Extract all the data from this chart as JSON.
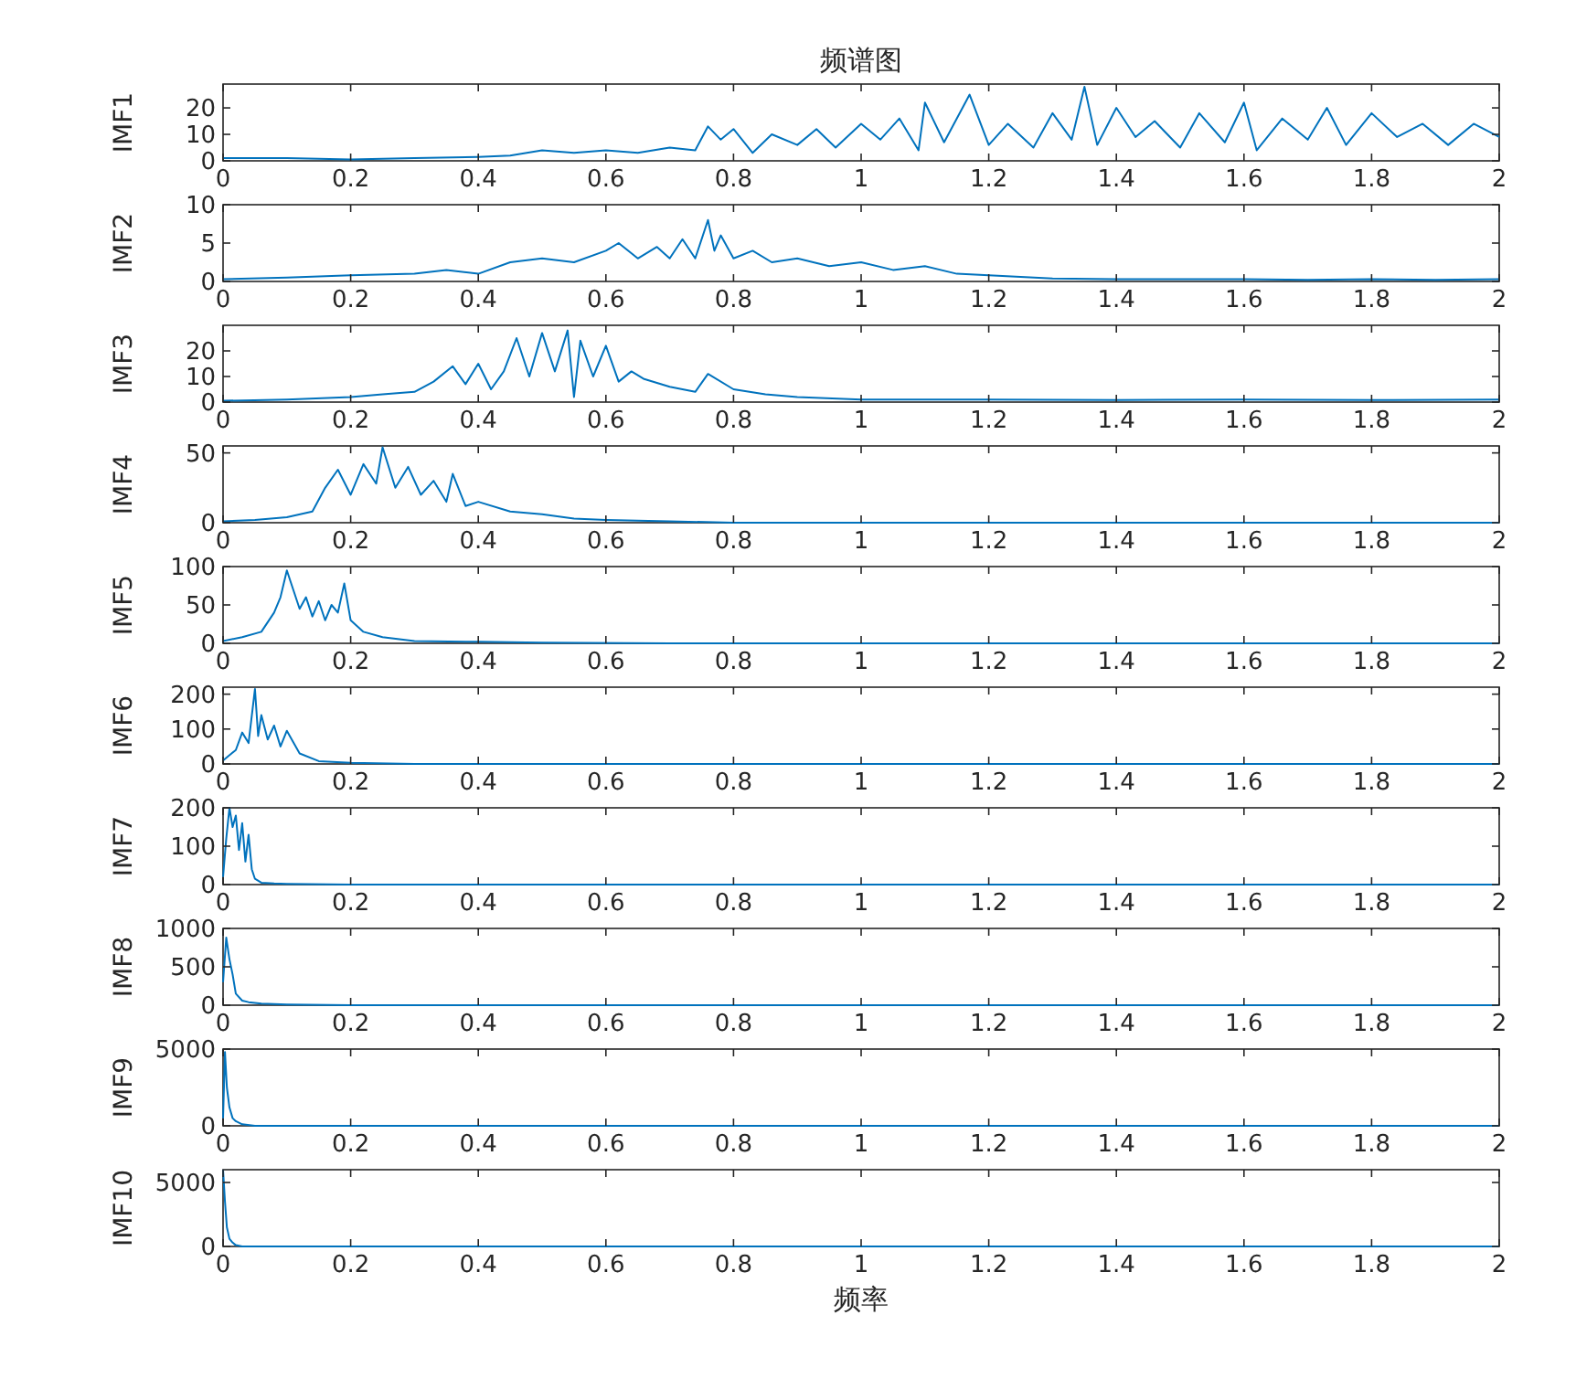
{
  "chart_data": [
    {
      "type": "line",
      "title": "频谱图",
      "ylabel": "IMF1",
      "color": "#0072bd",
      "xlim": [
        0,
        2
      ],
      "xticks": [
        0,
        0.2,
        0.4,
        0.6,
        0.8,
        1,
        1.2,
        1.4,
        1.6,
        1.8,
        2
      ],
      "ylim": [
        0,
        29
      ],
      "yticks": [
        0,
        10,
        20
      ],
      "x": [
        0,
        0.1,
        0.2,
        0.3,
        0.4,
        0.45,
        0.5,
        0.55,
        0.6,
        0.65,
        0.7,
        0.74,
        0.76,
        0.78,
        0.8,
        0.83,
        0.86,
        0.9,
        0.93,
        0.96,
        1.0,
        1.03,
        1.06,
        1.09,
        1.1,
        1.13,
        1.17,
        1.2,
        1.23,
        1.27,
        1.3,
        1.33,
        1.35,
        1.37,
        1.4,
        1.43,
        1.46,
        1.5,
        1.53,
        1.57,
        1.6,
        1.62,
        1.66,
        1.7,
        1.73,
        1.76,
        1.8,
        1.84,
        1.88,
        1.92,
        1.96,
        2.0
      ],
      "values": [
        1,
        1,
        0.5,
        1,
        1.5,
        2,
        4,
        3,
        4,
        3,
        5,
        4,
        13,
        8,
        12,
        3,
        10,
        6,
        12,
        5,
        14,
        8,
        16,
        4,
        22,
        7,
        25,
        6,
        14,
        5,
        18,
        8,
        28,
        6,
        20,
        9,
        15,
        5,
        18,
        7,
        22,
        4,
        16,
        8,
        20,
        6,
        18,
        9,
        14,
        6,
        14,
        9
      ]
    },
    {
      "type": "line",
      "ylabel": "IMF2",
      "color": "#0072bd",
      "xlim": [
        0,
        2
      ],
      "xticks": [
        0,
        0.2,
        0.4,
        0.6,
        0.8,
        1,
        1.2,
        1.4,
        1.6,
        1.8,
        2
      ],
      "ylim": [
        0,
        10
      ],
      "yticks": [
        0,
        5,
        10
      ],
      "x": [
        0,
        0.1,
        0.2,
        0.3,
        0.35,
        0.4,
        0.45,
        0.5,
        0.55,
        0.6,
        0.62,
        0.65,
        0.68,
        0.7,
        0.72,
        0.74,
        0.76,
        0.77,
        0.78,
        0.8,
        0.83,
        0.86,
        0.9,
        0.95,
        1.0,
        1.05,
        1.1,
        1.15,
        1.2,
        1.3,
        1.4,
        1.5,
        1.6,
        1.7,
        1.8,
        1.9,
        2.0
      ],
      "values": [
        0.3,
        0.5,
        0.8,
        1,
        1.5,
        1,
        2.5,
        3,
        2.5,
        4,
        5,
        3,
        4.5,
        3,
        5.5,
        3,
        8,
        4,
        6,
        3,
        4,
        2.5,
        3,
        2,
        2.5,
        1.5,
        2,
        1,
        0.8,
        0.4,
        0.3,
        0.3,
        0.3,
        0.2,
        0.3,
        0.2,
        0.3
      ]
    },
    {
      "type": "line",
      "ylabel": "IMF3",
      "color": "#0072bd",
      "xlim": [
        0,
        2
      ],
      "xticks": [
        0,
        0.2,
        0.4,
        0.6,
        0.8,
        1,
        1.2,
        1.4,
        1.6,
        1.8,
        2
      ],
      "ylim": [
        0,
        30
      ],
      "yticks": [
        0,
        10,
        20
      ],
      "x": [
        0,
        0.1,
        0.2,
        0.25,
        0.3,
        0.33,
        0.36,
        0.38,
        0.4,
        0.42,
        0.44,
        0.46,
        0.48,
        0.5,
        0.52,
        0.54,
        0.55,
        0.56,
        0.58,
        0.6,
        0.62,
        0.64,
        0.66,
        0.7,
        0.74,
        0.76,
        0.8,
        0.85,
        0.9,
        1.0,
        1.2,
        1.4,
        1.6,
        1.8,
        2.0
      ],
      "values": [
        0.5,
        1,
        2,
        3,
        4,
        8,
        14,
        7,
        15,
        5,
        12,
        25,
        10,
        27,
        12,
        28,
        2,
        24,
        10,
        22,
        8,
        12,
        9,
        6,
        4,
        11,
        5,
        3,
        2,
        1,
        1,
        0.8,
        1,
        0.8,
        1
      ]
    },
    {
      "type": "line",
      "ylabel": "IMF4",
      "color": "#0072bd",
      "xlim": [
        0,
        2
      ],
      "xticks": [
        0,
        0.2,
        0.4,
        0.6,
        0.8,
        1,
        1.2,
        1.4,
        1.6,
        1.8,
        2
      ],
      "ylim": [
        0,
        55
      ],
      "yticks": [
        0,
        50
      ],
      "x": [
        0,
        0.05,
        0.1,
        0.14,
        0.16,
        0.18,
        0.2,
        0.22,
        0.24,
        0.25,
        0.27,
        0.29,
        0.31,
        0.33,
        0.35,
        0.36,
        0.38,
        0.4,
        0.45,
        0.5,
        0.55,
        0.6,
        0.7,
        0.8,
        1.0,
        1.5,
        2.0
      ],
      "values": [
        1,
        2,
        4,
        8,
        25,
        38,
        20,
        42,
        28,
        54,
        25,
        40,
        20,
        30,
        15,
        35,
        12,
        15,
        8,
        6,
        3,
        2,
        1,
        0,
        0,
        0,
        0
      ]
    },
    {
      "type": "line",
      "ylabel": "IMF5",
      "color": "#0072bd",
      "xlim": [
        0,
        2
      ],
      "xticks": [
        0,
        0.2,
        0.4,
        0.6,
        0.8,
        1,
        1.2,
        1.4,
        1.6,
        1.8,
        2
      ],
      "ylim": [
        0,
        100
      ],
      "yticks": [
        0,
        50,
        100
      ],
      "x": [
        0,
        0.03,
        0.06,
        0.08,
        0.09,
        0.1,
        0.11,
        0.12,
        0.13,
        0.14,
        0.15,
        0.16,
        0.17,
        0.18,
        0.19,
        0.2,
        0.22,
        0.25,
        0.3,
        0.4,
        0.5,
        0.7,
        1.0,
        1.5,
        2.0
      ],
      "values": [
        3,
        8,
        15,
        40,
        60,
        95,
        70,
        45,
        60,
        35,
        55,
        30,
        50,
        40,
        78,
        30,
        15,
        8,
        3,
        2,
        1,
        0,
        0,
        0,
        0
      ]
    },
    {
      "type": "line",
      "ylabel": "IMF6",
      "color": "#0072bd",
      "xlim": [
        0,
        2
      ],
      "xticks": [
        0,
        0.2,
        0.4,
        0.6,
        0.8,
        1,
        1.2,
        1.4,
        1.6,
        1.8,
        2
      ],
      "ylim": [
        0,
        220
      ],
      "yticks": [
        0,
        100,
        200
      ],
      "x": [
        0,
        0.02,
        0.03,
        0.04,
        0.05,
        0.055,
        0.06,
        0.07,
        0.08,
        0.09,
        0.1,
        0.12,
        0.15,
        0.2,
        0.3,
        0.5,
        1.0,
        2.0
      ],
      "values": [
        10,
        40,
        90,
        60,
        215,
        80,
        140,
        70,
        110,
        50,
        95,
        30,
        8,
        3,
        0,
        0,
        0,
        0
      ]
    },
    {
      "type": "line",
      "ylabel": "IMF7",
      "color": "#0072bd",
      "xlim": [
        0,
        2
      ],
      "xticks": [
        0,
        0.2,
        0.4,
        0.6,
        0.8,
        1,
        1.2,
        1.4,
        1.6,
        1.8,
        2
      ],
      "ylim": [
        0,
        200
      ],
      "yticks": [
        0,
        100,
        200
      ],
      "x": [
        0,
        0.005,
        0.01,
        0.015,
        0.02,
        0.025,
        0.03,
        0.035,
        0.04,
        0.045,
        0.05,
        0.06,
        0.08,
        0.1,
        0.2,
        0.5,
        1.0,
        2.0
      ],
      "values": [
        20,
        120,
        200,
        150,
        180,
        90,
        160,
        60,
        130,
        40,
        15,
        5,
        3,
        2,
        0,
        0,
        0,
        0
      ]
    },
    {
      "type": "line",
      "ylabel": "IMF8",
      "color": "#0072bd",
      "xlim": [
        0,
        2
      ],
      "xticks": [
        0,
        0.2,
        0.4,
        0.6,
        0.8,
        1,
        1.2,
        1.4,
        1.6,
        1.8,
        2
      ],
      "ylim": [
        0,
        1000
      ],
      "yticks": [
        0,
        500,
        1000
      ],
      "x": [
        0,
        0.005,
        0.01,
        0.015,
        0.02,
        0.03,
        0.04,
        0.06,
        0.1,
        0.2,
        0.5,
        1.0,
        2.0
      ],
      "values": [
        300,
        880,
        600,
        400,
        150,
        60,
        40,
        20,
        10,
        0,
        0,
        0,
        0
      ]
    },
    {
      "type": "line",
      "ylabel": "IMF9",
      "color": "#0072bd",
      "xlim": [
        0,
        2
      ],
      "xticks": [
        0,
        0.2,
        0.4,
        0.6,
        0.8,
        1,
        1.2,
        1.4,
        1.6,
        1.8,
        2
      ],
      "ylim": [
        0,
        5000
      ],
      "yticks": [
        0,
        5000
      ],
      "x": [
        0,
        0.003,
        0.006,
        0.01,
        0.015,
        0.02,
        0.03,
        0.05,
        0.1,
        0.2,
        0.5,
        2.0
      ],
      "values": [
        500,
        4800,
        2500,
        1200,
        500,
        300,
        100,
        0,
        0,
        0,
        0,
        0
      ]
    },
    {
      "type": "line",
      "ylabel": "IMF10",
      "xlabel": "频率",
      "color": "#0072bd",
      "xlim": [
        0,
        2
      ],
      "xticks": [
        0,
        0.2,
        0.4,
        0.6,
        0.8,
        1,
        1.2,
        1.4,
        1.6,
        1.8,
        2
      ],
      "ylim": [
        0,
        6000
      ],
      "yticks": [
        0,
        5000
      ],
      "x": [
        0,
        0.003,
        0.006,
        0.01,
        0.015,
        0.02,
        0.03,
        0.05,
        0.1,
        0.5,
        2.0
      ],
      "values": [
        6000,
        3500,
        1500,
        600,
        300,
        100,
        0,
        0,
        0,
        0,
        0
      ]
    }
  ]
}
